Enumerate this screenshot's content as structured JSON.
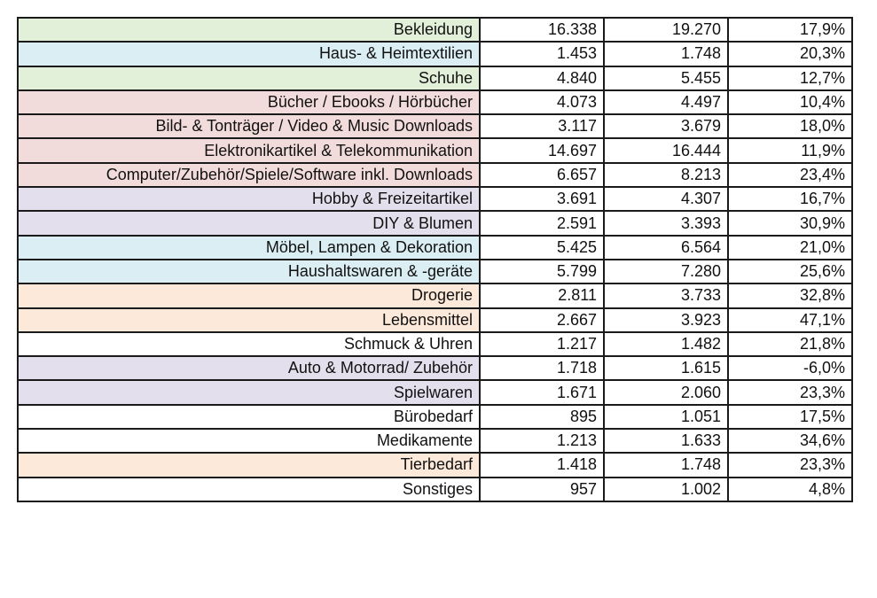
{
  "colors": {
    "green": "#e2efd9",
    "blue": "#dbeef4",
    "red": "#f2dcdb",
    "purple": "#e4dfec",
    "orange": "#fde9d9",
    "white": "#ffffff"
  },
  "rows": [
    {
      "category": "Bekleidung",
      "v1": "16.338",
      "v2": "19.270",
      "change": "17,9%",
      "color": "green"
    },
    {
      "category": "Haus- & Heimtextilien",
      "v1": "1.453",
      "v2": "1.748",
      "change": "20,3%",
      "color": "blue"
    },
    {
      "category": "Schuhe",
      "v1": "4.840",
      "v2": "5.455",
      "change": "12,7%",
      "color": "green"
    },
    {
      "category": "Bücher / Ebooks / Hörbücher",
      "v1": "4.073",
      "v2": "4.497",
      "change": "10,4%",
      "color": "red"
    },
    {
      "category": "Bild- & Tonträger / Video & Music Downloads",
      "v1": "3.117",
      "v2": "3.679",
      "change": "18,0%",
      "color": "red"
    },
    {
      "category": "Elektronikartikel & Telekommunikation",
      "v1": "14.697",
      "v2": "16.444",
      "change": "11,9%",
      "color": "red"
    },
    {
      "category": "Computer/Zubehör/Spiele/Software inkl. Downloads",
      "v1": "6.657",
      "v2": "8.213",
      "change": "23,4%",
      "color": "red"
    },
    {
      "category": "Hobby & Freizeitartikel",
      "v1": "3.691",
      "v2": "4.307",
      "change": "16,7%",
      "color": "purple"
    },
    {
      "category": "DIY & Blumen",
      "v1": "2.591",
      "v2": "3.393",
      "change": "30,9%",
      "color": "purple"
    },
    {
      "category": "Möbel, Lampen & Dekoration",
      "v1": "5.425",
      "v2": "6.564",
      "change": "21,0%",
      "color": "blue"
    },
    {
      "category": "Haushaltswaren & -geräte",
      "v1": "5.799",
      "v2": "7.280",
      "change": "25,6%",
      "color": "blue"
    },
    {
      "category": "Drogerie",
      "v1": "2.811",
      "v2": "3.733",
      "change": "32,8%",
      "color": "orange"
    },
    {
      "category": "Lebensmittel",
      "v1": "2.667",
      "v2": "3.923",
      "change": "47,1%",
      "color": "orange"
    },
    {
      "category": "Schmuck & Uhren",
      "v1": "1.217",
      "v2": "1.482",
      "change": "21,8%",
      "color": "white"
    },
    {
      "category": "Auto & Motorrad/ Zubehör",
      "v1": "1.718",
      "v2": "1.615",
      "change": "-6,0%",
      "color": "purple"
    },
    {
      "category": "Spielwaren",
      "v1": "1.671",
      "v2": "2.060",
      "change": "23,3%",
      "color": "purple"
    },
    {
      "category": "Bürobedarf",
      "v1": "895",
      "v2": "1.051",
      "change": "17,5%",
      "color": "white"
    },
    {
      "category": "Medikamente",
      "v1": "1.213",
      "v2": "1.633",
      "change": "34,6%",
      "color": "white"
    },
    {
      "category": "Tierbedarf",
      "v1": "1.418",
      "v2": "1.748",
      "change": "23,3%",
      "color": "orange"
    },
    {
      "category": "Sonstiges",
      "v1": "957",
      "v2": "1.002",
      "change": "4,8%",
      "color": "white"
    }
  ]
}
